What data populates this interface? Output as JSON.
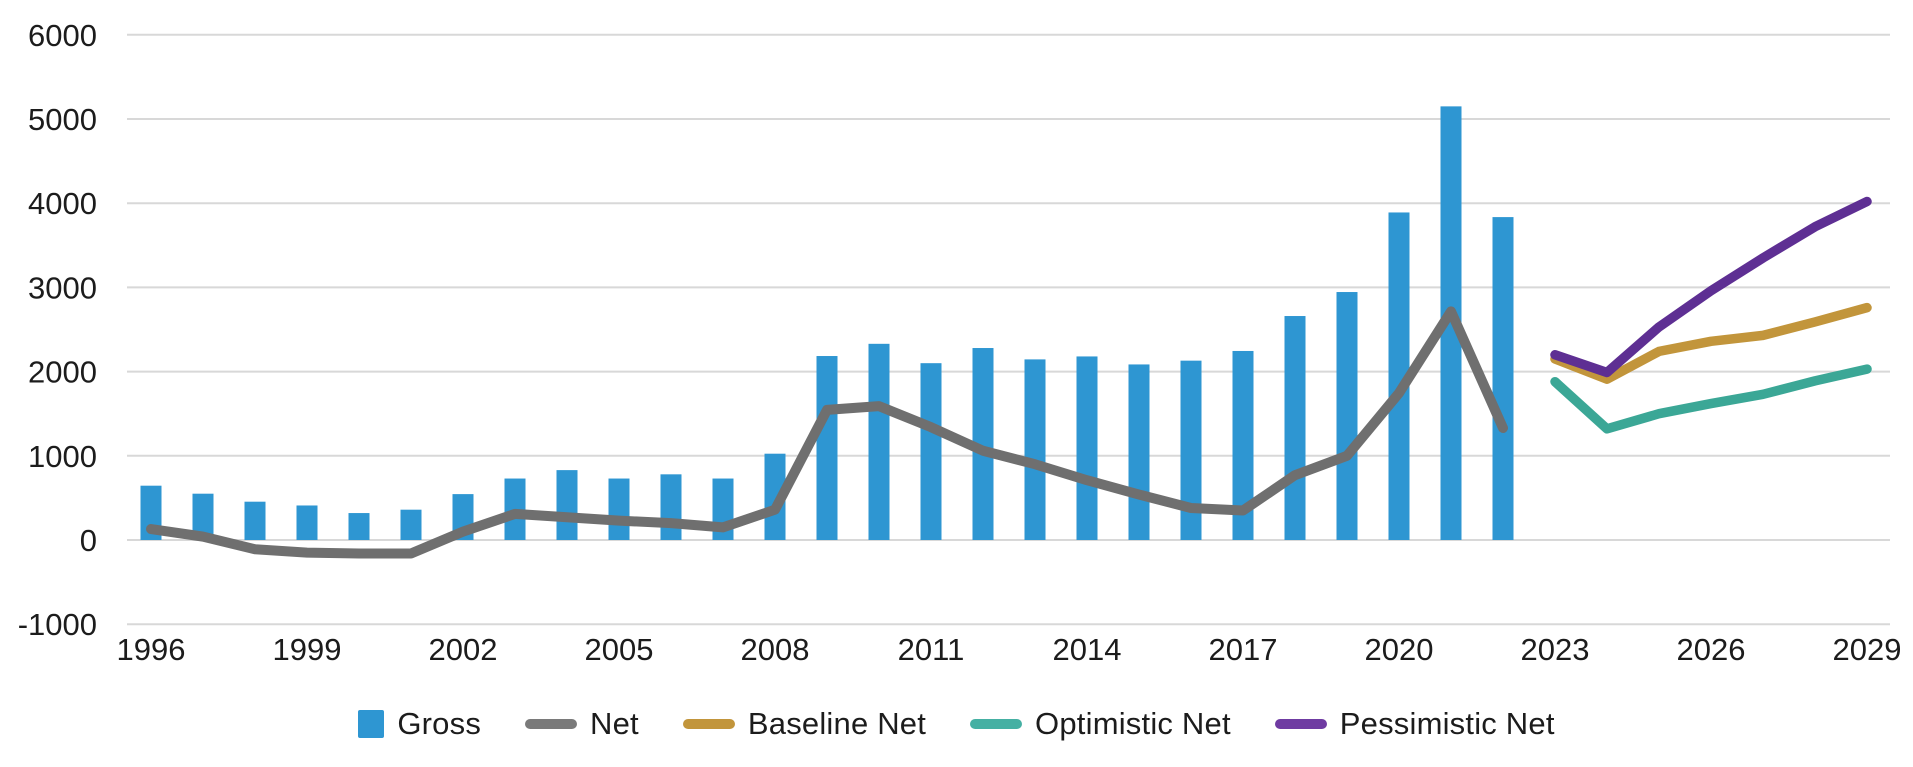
{
  "chart_data": {
    "type": "bar+line combo",
    "title": "",
    "xlabel": "",
    "ylabel": "",
    "grid": true,
    "background_color": "#FFFFFF",
    "gridline_color": "#D8D8D8",
    "text_color": "#1C1C1C",
    "y_axis": {
      "min": -1000,
      "max": 6000,
      "step": 1000,
      "ticks": [
        -1000,
        0,
        1000,
        2000,
        3000,
        4000,
        5000,
        6000
      ]
    },
    "x_axis": {
      "ticks": [
        1996,
        1999,
        2002,
        2005,
        2008,
        2011,
        2014,
        2017,
        2020,
        2023,
        2026,
        2029
      ]
    },
    "bar_series": {
      "name": "Gross",
      "color": "#2E96D2",
      "years": [
        1996,
        1997,
        1998,
        1999,
        2000,
        2001,
        2002,
        2003,
        2004,
        2005,
        2006,
        2007,
        2008,
        2009,
        2010,
        2011,
        2012,
        2013,
        2014,
        2015,
        2016,
        2017,
        2018,
        2019,
        2020,
        2021,
        2022
      ],
      "values": [
        645,
        550,
        455,
        410,
        320,
        360,
        545,
        730,
        830,
        730,
        780,
        730,
        1025,
        2185,
        2330,
        2100,
        2280,
        2145,
        2180,
        2085,
        2130,
        2245,
        2660,
        2945,
        3890,
        5150,
        3835
      ]
    },
    "line_series": [
      {
        "name": "Net",
        "color": "#6F6F6F",
        "stroke_width": 10,
        "years": [
          1996,
          1997,
          1998,
          1999,
          2000,
          2001,
          2002,
          2003,
          2004,
          2005,
          2006,
          2007,
          2008,
          2009,
          2010,
          2011,
          2012,
          2013,
          2014,
          2015,
          2016,
          2017,
          2018,
          2019,
          2020,
          2021,
          2022
        ],
        "values": [
          130,
          40,
          -110,
          -150,
          -160,
          -160,
          100,
          310,
          270,
          230,
          200,
          150,
          360,
          1545,
          1590,
          1340,
          1060,
          900,
          710,
          540,
          380,
          350,
          770,
          1000,
          1745,
          2715,
          1330
        ]
      },
      {
        "name": "Baseline Net",
        "color": "#C2953B",
        "stroke_width": 9.5,
        "years": [
          2023,
          2024,
          2025,
          2026,
          2027,
          2028,
          2029
        ],
        "values": [
          2150,
          1910,
          2240,
          2360,
          2430,
          2590,
          2760
        ]
      },
      {
        "name": "Optimistic Net",
        "color": "#3BA796",
        "stroke_width": 9.5,
        "years": [
          2023,
          2024,
          2025,
          2026,
          2027,
          2028,
          2029
        ],
        "values": [
          1880,
          1320,
          1500,
          1620,
          1730,
          1890,
          2030
        ]
      },
      {
        "name": "Pessimistic Net",
        "color": "#5E2F93",
        "stroke_width": 9.5,
        "years": [
          2023,
          2024,
          2025,
          2026,
          2027,
          2028,
          2029
        ],
        "values": [
          2200,
          1990,
          2530,
          2960,
          3350,
          3720,
          4020
        ]
      }
    ],
    "legend": {
      "position": "bottom-center",
      "items": [
        {
          "label": "Gross",
          "swatch": "square",
          "color": "#2E96D2"
        },
        {
          "label": "Net",
          "swatch": "line",
          "color": "#7A7A7A"
        },
        {
          "label": "Baseline Net",
          "swatch": "line",
          "color": "#C2953B"
        },
        {
          "label": "Optimistic Net",
          "swatch": "line",
          "color": "#45B0A3"
        },
        {
          "label": "Pessimistic Net",
          "swatch": "line",
          "color": "#6F3BA2"
        }
      ]
    }
  }
}
